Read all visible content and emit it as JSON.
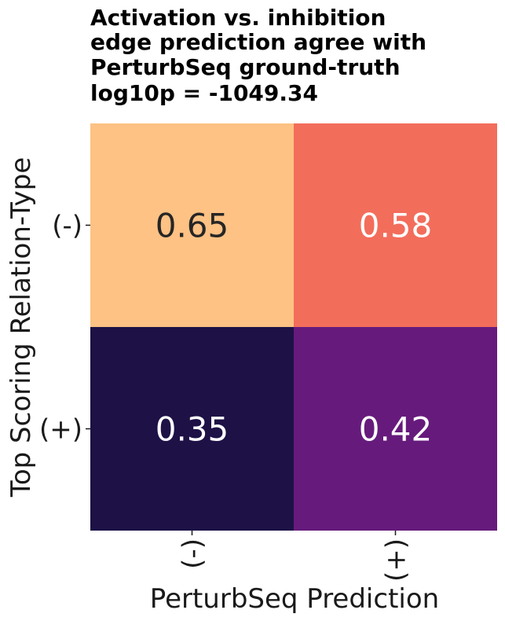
{
  "chart_data": {
    "type": "heatmap",
    "title_lines": [
      "Activation vs. inhibition",
      "edge prediction agree with",
      "PerturbSeq ground-truth",
      "log10p = -1049.34"
    ],
    "xlabel": "PerturbSeq Prediction",
    "ylabel": "Top Scoring Relation-Type",
    "x_categories": [
      "(-)",
      "(+)"
    ],
    "y_categories": [
      "(-)",
      "(+)"
    ],
    "values": [
      [
        0.65,
        0.58
      ],
      [
        0.35,
        0.42
      ]
    ],
    "value_labels": [
      [
        "0.65",
        "0.58"
      ],
      [
        "0.35",
        "0.42"
      ]
    ],
    "cell_colors": [
      [
        "#fdc284",
        "#f36d5b"
      ],
      [
        "#1d1146",
        "#661b7c"
      ]
    ],
    "label_colors": [
      [
        "#262626",
        "#ffffff"
      ],
      [
        "#ffffff",
        "#ffffff"
      ]
    ],
    "colormap": "magma",
    "colorbar": false
  }
}
